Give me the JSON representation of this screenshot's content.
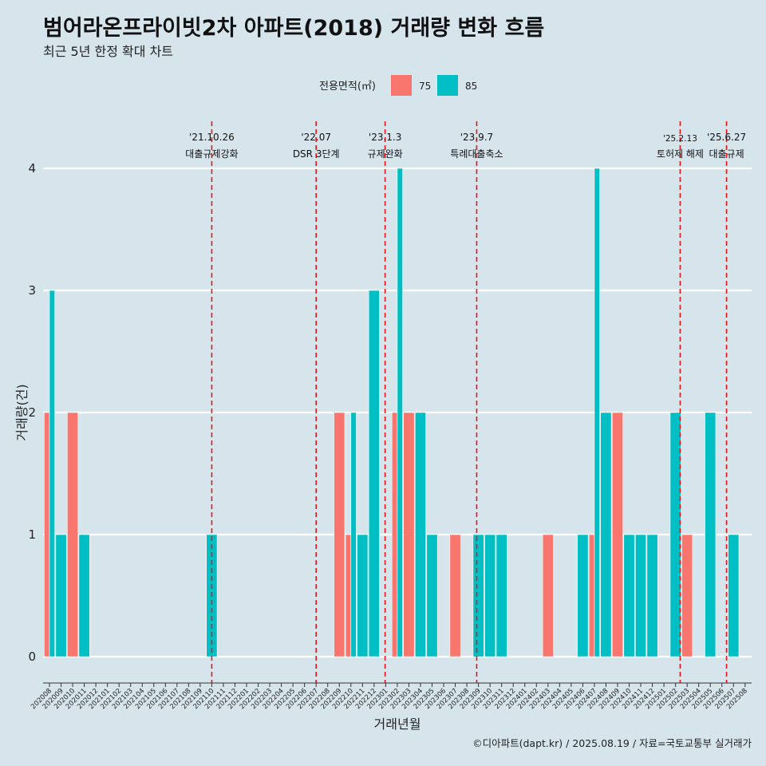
{
  "chart_data": {
    "type": "bar",
    "title": "범어라온프라이빗2차 아파트(2018) 거래량 변화 흐름",
    "subtitle": "최근 5년 한정 확대 차트",
    "xlabel": "거래년월",
    "ylabel": "거래량(건)",
    "ylim": [
      0,
      4
    ],
    "yticks": [
      0,
      1,
      2,
      3,
      4
    ],
    "grid": true,
    "legend": {
      "title": "전용면적(㎡)",
      "placement": "top",
      "items": [
        {
          "name": "75",
          "color": "#f8766d"
        },
        {
          "name": "85",
          "color": "#00bfc4"
        }
      ]
    },
    "categories": [
      "202008",
      "202009",
      "202010",
      "202011",
      "202012",
      "202101",
      "202102",
      "202103",
      "202104",
      "202105",
      "202106",
      "202107",
      "202108",
      "202109",
      "202110",
      "202111",
      "202112",
      "202201",
      "202202",
      "202203",
      "202204",
      "202205",
      "202206",
      "202207",
      "202208",
      "202209",
      "202210",
      "202211",
      "202212",
      "202301",
      "202302",
      "202303",
      "202304",
      "202305",
      "202306",
      "202307",
      "202308",
      "202309",
      "202310",
      "202311",
      "202312",
      "202401",
      "202402",
      "202403",
      "202404",
      "202405",
      "202406",
      "202407",
      "202408",
      "202409",
      "202410",
      "202411",
      "202412",
      "202501",
      "202502",
      "202503",
      "202504",
      "202505",
      "202506",
      "202507",
      "202508"
    ],
    "series": [
      {
        "name": "75",
        "color": "#f8766d",
        "values": [
          2,
          0,
          2,
          0,
          0,
          0,
          0,
          0,
          0,
          0,
          0,
          0,
          0,
          0,
          0,
          0,
          0,
          0,
          0,
          0,
          0,
          0,
          0,
          0,
          0,
          2,
          1,
          0,
          0,
          0,
          2,
          2,
          0,
          0,
          0,
          1,
          0,
          0,
          0,
          0,
          0,
          0,
          0,
          1,
          0,
          0,
          0,
          1,
          0,
          2,
          0,
          0,
          0,
          0,
          0,
          1,
          0,
          0,
          0,
          0,
          0
        ]
      },
      {
        "name": "85",
        "color": "#00bfc4",
        "values": [
          3,
          1,
          0,
          1,
          0,
          0,
          0,
          0,
          0,
          0,
          0,
          0,
          0,
          0,
          1,
          0,
          0,
          0,
          0,
          0,
          0,
          0,
          0,
          0,
          0,
          0,
          2,
          1,
          3,
          0,
          4,
          0,
          2,
          1,
          0,
          0,
          0,
          1,
          1,
          1,
          0,
          0,
          0,
          0,
          0,
          0,
          1,
          4,
          2,
          0,
          1,
          1,
          1,
          0,
          2,
          0,
          0,
          2,
          0,
          1,
          0
        ]
      }
    ],
    "annotations": [
      {
        "date": "'21.10.26",
        "label": "대출규제강화",
        "position": 14.0
      },
      {
        "date": "'22.07",
        "label": "DSR 3단계",
        "position": 23.0
      },
      {
        "date": "'23.1.3",
        "label": "규제완화",
        "position": 28.95
      },
      {
        "date": "'23.9.7",
        "label": "특례대출축소",
        "position": 36.85
      },
      {
        "date": "'25.2.13",
        "label": "토허제 해제",
        "position": 54.4
      },
      {
        "date": "'25.6.27",
        "label": "대출규제",
        "position": 58.4
      }
    ],
    "caption": "©디아파트(dapt.kr) / 2025.08.19 / 자료=국토교통부 실거래가"
  }
}
